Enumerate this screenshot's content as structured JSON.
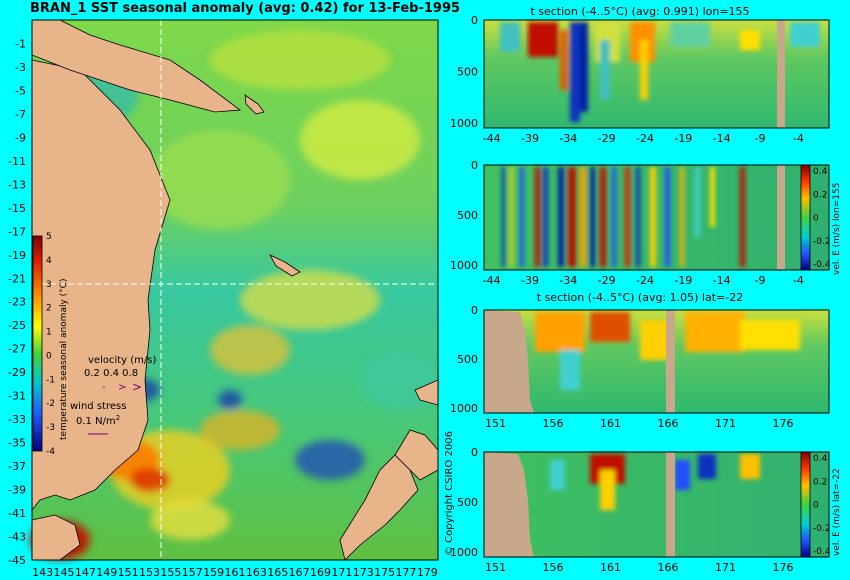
{
  "main_title": "BRAN_1 SST seasonal anomaly (avg: 0.42) for 13-Feb-1995",
  "copyright": "© Copyright CSIRO 2006",
  "colors": {
    "background": "#00ffff",
    "land": "#e8b48a",
    "section_land": "#c8a88a",
    "marker_line": "#ffffff"
  },
  "chart_data": [
    {
      "id": "map",
      "type": "heatmap",
      "title": "BRAN_1 SST seasonal anomaly (avg: 0.42) for 13-Feb-1995",
      "x_ticks": [
        "143",
        "145",
        "147",
        "149",
        "151",
        "153",
        "155",
        "157",
        "159",
        "161",
        "163",
        "165",
        "167",
        "169",
        "171",
        "173",
        "175",
        "177",
        "179"
      ],
      "y_ticks": [
        "-1",
        "-3",
        "-5",
        "-7",
        "-9",
        "-11",
        "-13",
        "-15",
        "-17",
        "-19",
        "-21",
        "-23",
        "-25",
        "-27",
        "-29",
        "-31",
        "-33",
        "-35",
        "-37",
        "-39",
        "-41",
        "-43",
        "-45"
      ],
      "xlim": [
        142,
        180
      ],
      "ylim": [
        -45,
        1
      ],
      "marker_lon": 155,
      "marker_lat": -22,
      "colorbar": {
        "label": "temperature seasonal anomaly (°C)",
        "ticks": [
          "5",
          "4",
          "3",
          "2",
          "1",
          "0",
          "-1",
          "-2",
          "-3",
          "-4"
        ],
        "range": [
          -4,
          5
        ]
      },
      "legend": {
        "velocity_label": "velocity (m/s)",
        "velocity_scale": "0.2 0.4 0.8",
        "wind_label": "wind stress",
        "wind_scale": "0.1 N/m",
        "wind_unit_exp": "2"
      }
    },
    {
      "id": "t-section-lon",
      "type": "heatmap",
      "title": "t section (-4..5°C) (avg: 0.991) lon=155",
      "x_ticks": [
        "-44",
        "-39",
        "-34",
        "-29",
        "-24",
        "-19",
        "-14",
        "-9",
        "-4"
      ],
      "y_ticks": [
        "0",
        "500",
        "1000"
      ],
      "xlim": [
        -45,
        0
      ],
      "ylim": [
        1050,
        0
      ]
    },
    {
      "id": "vel-section-lon",
      "type": "heatmap",
      "title": "",
      "x_ticks": [
        "-44",
        "-39",
        "-34",
        "-29",
        "-24",
        "-19",
        "-14",
        "-9",
        "-4"
      ],
      "y_ticks": [
        "0",
        "500",
        "1000"
      ],
      "xlim": [
        -45,
        0
      ],
      "ylim": [
        1050,
        0
      ],
      "colorbar": {
        "label": "vel. E (m/s) lon=155",
        "ticks": [
          "0.4",
          "0.2",
          "0",
          "-0.2",
          "-0.4"
        ],
        "range": [
          -0.4,
          0.4
        ]
      }
    },
    {
      "id": "t-section-lat",
      "type": "heatmap",
      "title": "t section (-4..5°C) (avg: 1.05) lat=-22",
      "x_ticks": [
        "151",
        "156",
        "161",
        "166",
        "171",
        "176"
      ],
      "y_ticks": [
        "0",
        "500",
        "1000"
      ],
      "xlim": [
        150,
        180
      ],
      "ylim": [
        1050,
        0
      ]
    },
    {
      "id": "vel-section-lat",
      "type": "heatmap",
      "title": "",
      "x_ticks": [
        "151",
        "156",
        "161",
        "166",
        "171",
        "176"
      ],
      "y_ticks": [
        "0",
        "500",
        "1000"
      ],
      "xlim": [
        150,
        180
      ],
      "ylim": [
        1050,
        0
      ],
      "colorbar": {
        "label": "vel. E (m/s) lat=-22",
        "ticks": [
          "0.4",
          "0.2",
          "0",
          "-0.2",
          "-0.4"
        ],
        "range": [
          -0.4,
          0.4
        ]
      }
    }
  ]
}
